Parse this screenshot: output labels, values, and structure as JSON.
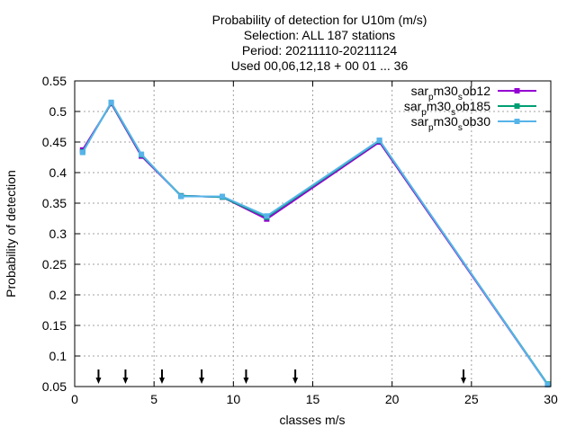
{
  "chart_data": {
    "type": "line",
    "title_lines": [
      "Probability of detection  for U10m (m/s)",
      "Selection: ALL    187 stations",
      "Period: 20211110-20211124",
      "Used 00,06,12,18 + 00 01 ... 36"
    ],
    "xlabel": "classes m/s",
    "ylabel": "Probability of detection",
    "xlim": [
      0,
      30
    ],
    "ylim": [
      0.05,
      0.55
    ],
    "xticks": [
      0,
      5,
      10,
      15,
      20,
      25,
      30
    ],
    "yticks": [
      0.05,
      0.1,
      0.15,
      0.2,
      0.25,
      0.3,
      0.35,
      0.4,
      0.45,
      0.5,
      0.55
    ],
    "grid": true,
    "legend_position": "top-right",
    "series": [
      {
        "name_parts": [
          "sar",
          "p",
          "m30",
          "s",
          "ob12"
        ],
        "color": "#9400d3",
        "x": [
          0.5,
          2.3,
          4.2,
          6.7,
          9.3,
          12.1,
          19.2,
          29.8
        ],
        "y": [
          0.437,
          0.513,
          0.427,
          0.362,
          0.36,
          0.324,
          0.45,
          0.053
        ]
      },
      {
        "name_parts": [
          "sar",
          "p",
          "m30",
          "s",
          "ob185"
        ],
        "color": "#009e73",
        "x": [
          0.5,
          2.3,
          4.2,
          6.7,
          9.3,
          12.1,
          19.2,
          29.8
        ],
        "y": [
          0.434,
          0.514,
          0.429,
          0.362,
          0.36,
          0.327,
          0.452,
          0.054
        ]
      },
      {
        "name_parts": [
          "sar",
          "p",
          "m30",
          "s",
          "ob30"
        ],
        "color": "#56b4e9",
        "x": [
          0.5,
          2.3,
          4.2,
          6.7,
          9.3,
          12.1,
          19.2,
          29.8
        ],
        "y": [
          0.433,
          0.515,
          0.43,
          0.361,
          0.361,
          0.329,
          0.453,
          0.053
        ]
      }
    ],
    "arrow_markers_x": [
      1.5,
      3.2,
      5.5,
      8.0,
      10.8,
      13.9,
      24.5
    ]
  }
}
